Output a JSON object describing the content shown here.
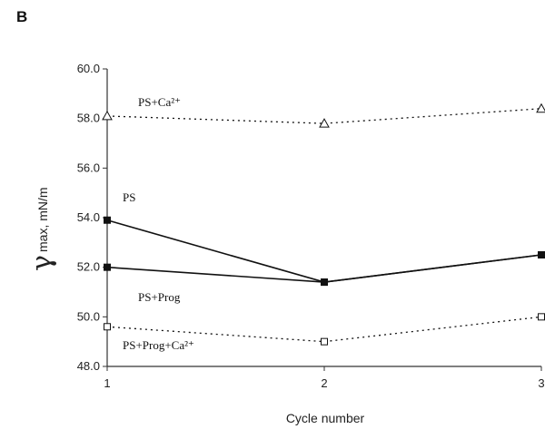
{
  "panel_label": "B",
  "chart_data": {
    "type": "line",
    "xlabel": "Cycle number",
    "ylabel_symbol": "γ",
    "ylabel_text": "max, mN/m",
    "x": [
      1,
      2,
      3
    ],
    "xticks": [
      "1",
      "2",
      "3"
    ],
    "yticks": [
      "48.0",
      "50.0",
      "52.0",
      "54.0",
      "56.0",
      "58.0",
      "60.0"
    ],
    "ylim": [
      48,
      60
    ],
    "grid": false,
    "series": [
      {
        "name": "PS+Ca²⁺",
        "values": [
          58.1,
          57.8,
          58.4
        ],
        "marker": "triangle-open",
        "line": "dotted"
      },
      {
        "name": "PS",
        "values": [
          53.9,
          51.4,
          52.5
        ],
        "marker": "square-filled",
        "line": "solid"
      },
      {
        "name": "PS+Prog",
        "values": [
          52.0,
          51.4,
          52.5
        ],
        "marker": "square-filled",
        "line": "solid"
      },
      {
        "name": "PS+Prog+Ca²⁺",
        "values": [
          49.6,
          49.0,
          50.0
        ],
        "marker": "square-open",
        "line": "dotted"
      }
    ],
    "annotations": [
      {
        "text": "PS+Ca²⁺",
        "series": 0
      },
      {
        "text": "PS",
        "series": 1
      },
      {
        "text": "PS+Prog",
        "series": 2
      },
      {
        "text": "PS+Prog+Ca²⁺",
        "series": 3
      }
    ]
  }
}
